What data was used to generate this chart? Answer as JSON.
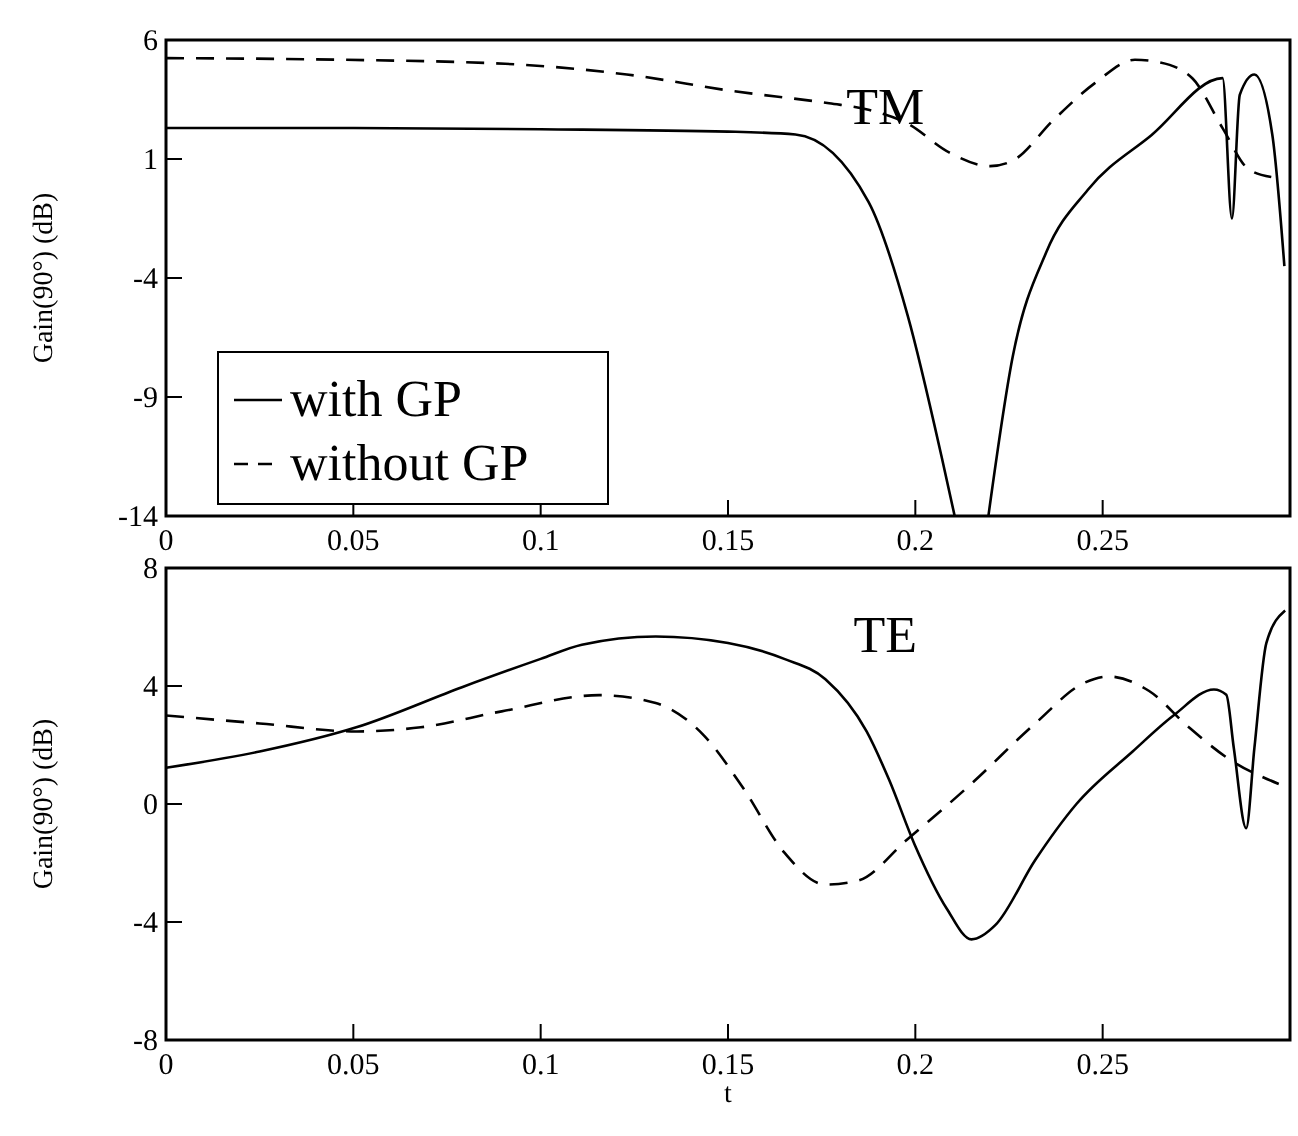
{
  "chart_data": [
    {
      "type": "line",
      "ylabel": "Gain(90°) (dB)",
      "annotations": [
        "TM"
      ],
      "xlim": [
        0,
        0.3
      ],
      "xticks": [
        0,
        0.05,
        0.1,
        0.15,
        0.2,
        0.25
      ],
      "ylim": [
        -14,
        6
      ],
      "yticks": [
        -14,
        -9,
        -4,
        1,
        6
      ],
      "legend": "bottom left",
      "grid": false,
      "series": [
        {
          "name": "with GP",
          "color": "#000000",
          "line_style": "solid",
          "x": [
            0,
            0.05,
            0.1,
            0.15,
            0.168,
            0.1875,
            0.198,
            0.207,
            0.2105,
            null,
            0.2195,
            0.226,
            0.235,
            0.246,
            0.263,
            0.282,
            0.2845,
            0.2866,
            0.2905,
            0.2953,
            0.2985
          ],
          "values": [
            2.3,
            2.3,
            2.25,
            2.15,
            2.03,
            -0.8,
            -5.6,
            -11.5,
            -14,
            null,
            -14,
            -7.3,
            -2.9,
            -0.3,
            2.0,
            4.4,
            -1.5,
            3.7,
            4.55,
            2.0,
            -3.5
          ]
        },
        {
          "name": "without GP",
          "color": "#000000",
          "line_style": "dashed",
          "x": [
            0,
            0.047,
            0.0905,
            0.123,
            0.151,
            0.177,
            0.1875,
            0.198,
            0.209,
            0.22,
            0.226,
            0.237,
            0.248,
            0.2586,
            0.265,
            0.274,
            0.282,
            0.2888,
            0.295
          ],
          "values": [
            5.24,
            5.17,
            5.0,
            4.55,
            3.86,
            3.34,
            3.07,
            2.48,
            1.28,
            0.7,
            0.93,
            2.66,
            4.2,
            5.17,
            5.07,
            4.38,
            2.3,
            0.59,
            0.24
          ]
        }
      ]
    },
    {
      "type": "line",
      "xlabel": "t",
      "ylabel": "Gain(90°)  (dB)",
      "annotations": [
        "TE"
      ],
      "xlim": [
        0,
        0.3
      ],
      "xticks": [
        0,
        0.05,
        0.1,
        0.15,
        0.2,
        0.25
      ],
      "ylim": [
        -8,
        8
      ],
      "yticks": [
        -8,
        -4,
        0,
        4,
        8
      ],
      "grid": false,
      "series": [
        {
          "color": "#000000",
          "line_style": "solid",
          "x": [
            0,
            0.025,
            0.0508,
            0.079,
            0.1,
            0.111,
            0.1307,
            0.15,
            0.165,
            0.176,
            0.187,
            0.193,
            0.1998,
            0.2084,
            0.215,
            0.2214,
            0.232,
            0.243,
            0.258,
            0.2689,
            0.2797,
            0.283,
            0.285,
            0.2883,
            0.2905,
            0.2937,
            0.2987
          ],
          "values": [
            1.23,
            1.78,
            2.6,
            3.96,
            4.92,
            5.4,
            5.68,
            5.46,
            4.92,
            4.23,
            2.46,
            0.82,
            -1.37,
            -3.55,
            -4.59,
            -4.1,
            -1.9,
            0,
            1.78,
            3.0,
            3.88,
            3.7,
            1.9,
            -0.82,
            1.9,
            5.46,
            6.56
          ]
        },
        {
          "color": "#000000",
          "line_style": "dashed",
          "x": [
            0,
            0.025,
            0.0508,
            0.068,
            0.0896,
            0.1156,
            0.1307,
            0.1436,
            0.154,
            0.165,
            0.176,
            0.1847,
            0.1976,
            0.2149,
            0.232,
            0.245,
            0.2516,
            0.2624,
            0.273,
            0.284,
            0.297
          ],
          "values": [
            3.0,
            2.73,
            2.46,
            2.6,
            3.14,
            3.69,
            3.42,
            2.32,
            0.55,
            -1.64,
            -2.73,
            -2.6,
            -1.23,
            0.68,
            2.73,
            4.1,
            4.32,
            3.83,
            2.6,
            1.5,
            0.68
          ]
        }
      ]
    }
  ]
}
